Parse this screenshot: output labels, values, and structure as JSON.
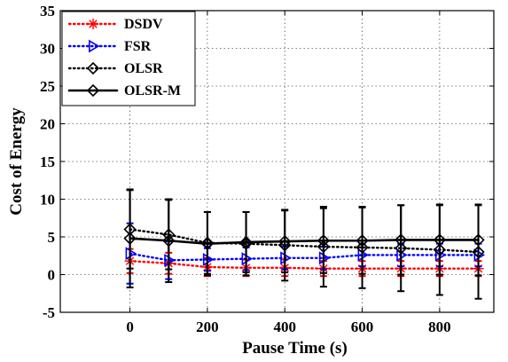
{
  "chart_data": {
    "type": "line",
    "title": "",
    "xlabel": "Pause Time (s)",
    "ylabel": "Cost of Energy",
    "xlim": [
      -180,
      940
    ],
    "ylim": [
      -5,
      35
    ],
    "x_ticks": [
      0,
      200,
      400,
      600,
      800
    ],
    "y_ticks": [
      -5,
      0,
      5,
      10,
      15,
      20,
      25,
      30,
      35
    ],
    "grid": true,
    "legend_position": "top-left",
    "x": [
      0,
      100,
      200,
      300,
      400,
      500,
      600,
      700,
      800,
      900
    ],
    "series": [
      {
        "name": "DSDV",
        "color": "#ff0000",
        "line_style": "dotted",
        "marker": "asterisk",
        "values": [
          1.8,
          1.5,
          1.0,
          0.9,
          0.9,
          0.8,
          0.8,
          0.8,
          0.8,
          0.8
        ],
        "errors": [
          1.6,
          1.4,
          1.2,
          1.1,
          1.1,
          1.0,
          1.0,
          1.0,
          1.0,
          1.0
        ]
      },
      {
        "name": "FSR",
        "color": "#0000ff",
        "line_style": "dotted",
        "marker": "triangle-right",
        "values": [
          2.8,
          1.9,
          2.0,
          2.1,
          2.2,
          2.2,
          2.6,
          2.6,
          2.6,
          2.6
        ],
        "errors": [
          4.0,
          2.5,
          1.5,
          1.5,
          1.5,
          1.5,
          1.5,
          1.5,
          1.5,
          1.5
        ]
      },
      {
        "name": "OLSR",
        "color": "#000000",
        "line_style": "dotted",
        "marker": "diamond",
        "values": [
          6.0,
          5.3,
          4.2,
          4.1,
          3.9,
          3.7,
          3.6,
          3.5,
          3.3,
          3.0
        ],
        "errors": [
          5.2,
          4.6,
          4.1,
          4.2,
          4.7,
          5.3,
          5.4,
          5.7,
          6.0,
          6.2
        ]
      },
      {
        "name": "OLSR-M",
        "color": "#000000",
        "line_style": "solid",
        "marker": "diamond",
        "values": [
          4.8,
          4.5,
          4.1,
          4.3,
          4.4,
          4.5,
          4.5,
          4.6,
          4.6,
          4.6
        ],
        "errors": [
          6.5,
          5.5,
          4.2,
          4.0,
          4.1,
          4.3,
          4.4,
          4.6,
          4.6,
          4.7
        ]
      }
    ]
  }
}
